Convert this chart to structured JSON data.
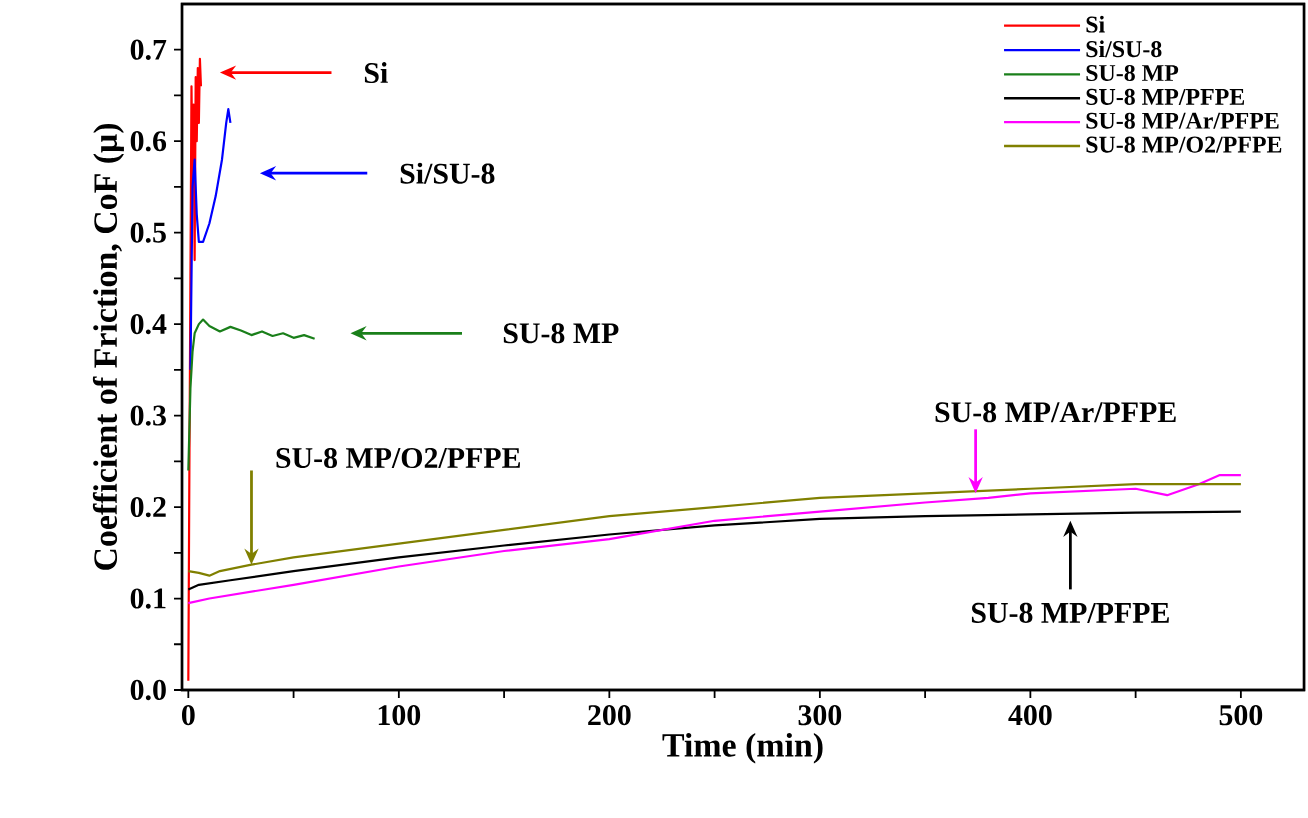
{
  "chart_data": {
    "type": "line",
    "xlabel": "Time (min)",
    "ylabel": "Coefficient of Friction, CoF (μ)",
    "xlim": [
      -3,
      530
    ],
    "ylim": [
      0,
      0.75
    ],
    "xticks": [
      0,
      {
        "value": 50,
        "label": null
      },
      100,
      {
        "value": 150,
        "label": null
      },
      200,
      {
        "value": 250,
        "label": null
      },
      300,
      {
        "value": 350,
        "label": null
      },
      400,
      {
        "value": 450,
        "label": null
      },
      500
    ],
    "yticks": [
      {
        "value": 0,
        "label": "0.0"
      },
      {
        "value": 0.05,
        "label": null
      },
      {
        "value": 0.1,
        "label": "0.1"
      },
      {
        "value": 0.15,
        "label": null
      },
      {
        "value": 0.2,
        "label": "0.2"
      },
      {
        "value": 0.25,
        "label": null
      },
      {
        "value": 0.3,
        "label": "0.3"
      },
      {
        "value": 0.35,
        "label": null
      },
      {
        "value": 0.4,
        "label": "0.4"
      },
      {
        "value": 0.45,
        "label": null
      },
      {
        "value": 0.5,
        "label": "0.5"
      },
      {
        "value": 0.55,
        "label": null
      },
      {
        "value": 0.6,
        "label": "0.6"
      },
      {
        "value": 0.65,
        "label": null
      },
      {
        "value": 0.7,
        "label": "0.7"
      }
    ],
    "grid": false,
    "legend": "top right",
    "marker": "none",
    "line_style": "solid",
    "series": [
      {
        "name": "Si",
        "color": "#ff0000",
        "x": [
          0,
          0.5,
          1,
          1.5,
          2,
          2.5,
          3,
          3.5,
          4,
          4.5,
          5,
          5.5,
          6
        ],
        "values": [
          0.01,
          0.24,
          0.45,
          0.66,
          0.55,
          0.64,
          0.47,
          0.67,
          0.6,
          0.68,
          0.62,
          0.69,
          0.66
        ]
      },
      {
        "name": "Si/SU-8",
        "color": "#0000ff",
        "x": [
          1,
          2,
          3,
          4,
          5,
          7,
          10,
          13,
          16,
          18,
          19,
          20
        ],
        "values": [
          0.35,
          0.55,
          0.58,
          0.52,
          0.49,
          0.49,
          0.51,
          0.54,
          0.58,
          0.62,
          0.635,
          0.62
        ]
      },
      {
        "name": "SU-8 MP",
        "color": "#1a7f1a",
        "x": [
          0,
          1,
          2,
          3,
          5,
          7,
          10,
          15,
          20,
          25,
          30,
          35,
          40,
          45,
          50,
          55,
          60
        ],
        "values": [
          0.24,
          0.33,
          0.37,
          0.39,
          0.4,
          0.405,
          0.398,
          0.392,
          0.397,
          0.393,
          0.388,
          0.392,
          0.387,
          0.39,
          0.385,
          0.388,
          0.384
        ]
      },
      {
        "name": "SU-8 MP/PFPE",
        "color": "#000000",
        "x": [
          0,
          5,
          20,
          50,
          100,
          150,
          200,
          250,
          300,
          350,
          400,
          450,
          500
        ],
        "values": [
          0.11,
          0.115,
          0.12,
          0.13,
          0.145,
          0.158,
          0.17,
          0.18,
          0.187,
          0.19,
          0.192,
          0.194,
          0.195
        ]
      },
      {
        "name": "SU-8 MP/Ar/PFPE",
        "color": "#ff00ff",
        "x": [
          0,
          10,
          50,
          100,
          150,
          200,
          250,
          300,
          350,
          380,
          400,
          450,
          465,
          480,
          490,
          500
        ],
        "values": [
          0.095,
          0.1,
          0.115,
          0.135,
          0.152,
          0.165,
          0.185,
          0.195,
          0.205,
          0.21,
          0.215,
          0.22,
          0.213,
          0.225,
          0.235,
          0.235
        ]
      },
      {
        "name": "SU-8 MP/O2/PFPE",
        "color": "#808000",
        "x": [
          0,
          5,
          10,
          15,
          30,
          50,
          100,
          150,
          200,
          250,
          300,
          350,
          400,
          450,
          500
        ],
        "values": [
          0.13,
          0.128,
          0.125,
          0.13,
          0.137,
          0.145,
          0.16,
          0.175,
          0.19,
          0.2,
          0.21,
          0.215,
          0.22,
          0.225,
          0.225
        ]
      }
    ],
    "annotations": [
      "Si",
      "Si/SU-8",
      "SU-8 MP",
      {
        "text": "SU-8 MP/O2/PFPE",
        "x": 30,
        "y": 0.137
      },
      {
        "text": "SU-8 MP/Ar/PFPE",
        "x": 374,
        "y": 0.215
      },
      {
        "text": "SU-8 MP/PFPE",
        "x": 419,
        "y": 0.185
      }
    ]
  }
}
